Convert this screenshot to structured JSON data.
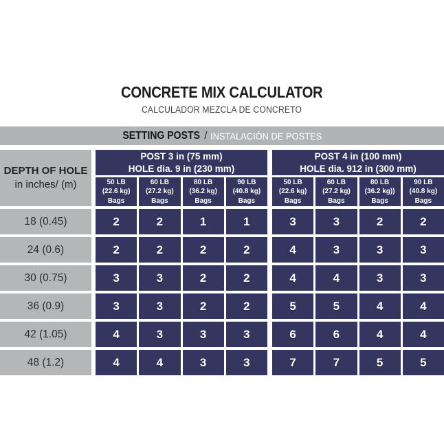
{
  "page": {
    "title": "CONCRETE MIX CALCULATOR",
    "subtitle": "CALCULADOR MEZCLA DE CONCRETO",
    "banner": {
      "title": "SETTING POSTS",
      "sep": "/",
      "subtitle": "INSTALACIÓN DE POSTES"
    }
  },
  "colors": {
    "navy": "#34365f",
    "banner_gray": "#b1b3b5",
    "cell_gray": "#b4b6b8",
    "title_black": "#1d1d1b",
    "subtitle_gray": "#414042",
    "label_dark": "#2e2d2f",
    "white": "#ffffff"
  },
  "chart_data": {
    "type": "table",
    "title": "CONCRETE MIX CALCULATOR — SETTING POSTS (bags of concrete needed)",
    "row_header": {
      "line1": "DEPTH OF HOLE",
      "line2": "in inches/ (m)"
    },
    "row_labels": [
      "18 (0.45)",
      "24 (0.6)",
      "30 (0.75)",
      "36 (0.9)",
      "42 (1.05)",
      "48 (1.2)"
    ],
    "groups": [
      {
        "title_line1": "POST 3 in (75 mm)",
        "title_line2": "HOLE dia. 9 in (230 mm)",
        "columns": [
          {
            "weight": "50 LB",
            "kg": "(22.6 kg)",
            "unit": "Bags"
          },
          {
            "weight": "60 LB",
            "kg": "(27.2 kg)",
            "unit": "Bags"
          },
          {
            "weight": "80 LB",
            "kg": "(36.2 kg)",
            "unit": "Bags"
          },
          {
            "weight": "90 LB",
            "kg": "(40.8 kg)",
            "unit": "Bags"
          }
        ],
        "rows": [
          [
            2,
            2,
            1,
            1
          ],
          [
            2,
            2,
            2,
            2
          ],
          [
            3,
            3,
            2,
            2
          ],
          [
            3,
            3,
            2,
            2
          ],
          [
            4,
            3,
            3,
            3
          ],
          [
            4,
            4,
            3,
            3
          ]
        ]
      },
      {
        "title_line1": "POST 4 in (100 mm)",
        "title_line2": "HOLE dia. 912 in (300 mm)",
        "columns": [
          {
            "weight": "50 LB",
            "kg": "(22.6 kg)",
            "unit": "Bags"
          },
          {
            "weight": "60 LB",
            "kg": "(27.2 kg)",
            "unit": "Bags"
          },
          {
            "weight": "80 LB",
            "kg": "(36.2 kg))",
            "unit": "Bags"
          },
          {
            "weight": "90 LB",
            "kg": "(40.8 kg)",
            "unit": "Bags"
          }
        ],
        "rows": [
          [
            3,
            3,
            2,
            2
          ],
          [
            4,
            3,
            3,
            3
          ],
          [
            4,
            4,
            3,
            3
          ],
          [
            5,
            5,
            4,
            4
          ],
          [
            6,
            6,
            4,
            4
          ],
          [
            7,
            7,
            5,
            5
          ]
        ]
      }
    ]
  }
}
